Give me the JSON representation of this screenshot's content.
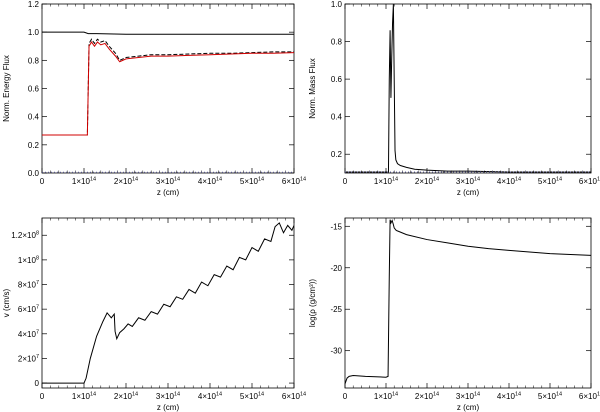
{
  "chart_data": [
    {
      "type": "line",
      "xlabel": "z (cm)",
      "ylabel": "Norm. Energy Flux",
      "xlim": [
        0,
        600000000000000.0
      ],
      "ylim": [
        0,
        1.2
      ],
      "xtick_values": [
        0,
        100000000000000.0,
        200000000000000.0,
        300000000000000.0,
        400000000000000.0,
        500000000000000.0,
        600000000000000.0
      ],
      "xtick_labels": [
        "0",
        "1×10^14",
        "2×10^14",
        "3×10^14",
        "4×10^14",
        "5×10^14",
        "6×10^14"
      ],
      "ytick_values": [
        0,
        0.2,
        0.4,
        0.6,
        0.8,
        1.0,
        1.2
      ],
      "ytick_labels": [
        "0.0",
        "0.2",
        "0.4",
        "0.6",
        "0.8",
        "1.0",
        "1.2"
      ],
      "series": [
        {
          "color": "#000000",
          "dash": "solid",
          "x": [
            0,
            100000000000000.0,
            110000000000000.0,
            130000000000000.0,
            200000000000000.0,
            300000000000000.0,
            400000000000000.0,
            500000000000000.0,
            600000000000000.0
          ],
          "y": [
            1.0,
            1.0,
            0.99,
            0.99,
            0.985,
            0.985,
            0.985,
            0.985,
            0.985
          ]
        },
        {
          "color": "#000000",
          "dash": "dashed",
          "x": [
            0,
            108000000000000.0,
            112000000000000.0,
            118000000000000.0,
            125000000000000.0,
            132000000000000.0,
            140000000000000.0,
            150000000000000.0,
            160000000000000.0,
            175000000000000.0,
            185000000000000.0,
            200000000000000.0,
            230000000000000.0,
            260000000000000.0,
            300000000000000.0,
            350000000000000.0,
            400000000000000.0,
            450000000000000.0,
            500000000000000.0,
            550000000000000.0,
            600000000000000.0
          ],
          "y": [
            0.27,
            0.27,
            0.92,
            0.95,
            0.92,
            0.95,
            0.93,
            0.94,
            0.9,
            0.85,
            0.8,
            0.82,
            0.83,
            0.84,
            0.84,
            0.845,
            0.85,
            0.85,
            0.855,
            0.86,
            0.86
          ]
        },
        {
          "color": "#d00000",
          "dash": "solid",
          "x": [
            0,
            108000000000000.0,
            112000000000000.0,
            118000000000000.0,
            125000000000000.0,
            132000000000000.0,
            140000000000000.0,
            150000000000000.0,
            160000000000000.0,
            175000000000000.0,
            185000000000000.0,
            200000000000000.0,
            230000000000000.0,
            260000000000000.0,
            300000000000000.0,
            350000000000000.0,
            400000000000000.0,
            450000000000000.0,
            500000000000000.0,
            550000000000000.0,
            600000000000000.0
          ],
          "y": [
            0.27,
            0.27,
            0.9,
            0.93,
            0.9,
            0.93,
            0.91,
            0.92,
            0.88,
            0.83,
            0.79,
            0.81,
            0.82,
            0.83,
            0.83,
            0.835,
            0.84,
            0.845,
            0.85,
            0.85,
            0.855
          ]
        },
        {
          "color": "#6060a0",
          "dash": "dotted",
          "x": [
            0,
            600000000000000.0
          ],
          "y": [
            0.005,
            0.005
          ]
        }
      ]
    },
    {
      "type": "line",
      "xlabel": "z (cm)",
      "ylabel": "Norm. Mass Flux",
      "xlim": [
        0,
        600000000000000.0
      ],
      "ylim": [
        0.1,
        1.0
      ],
      "xtick_values": [
        0,
        100000000000000.0,
        200000000000000.0,
        300000000000000.0,
        400000000000000.0,
        500000000000000.0,
        600000000000000.0
      ],
      "xtick_labels": [
        "0",
        "1×10^14",
        "2×10^14",
        "3×10^14",
        "4×10^14",
        "5×10^14",
        "6×10^14"
      ],
      "ytick_values": [
        0.2,
        0.4,
        0.6,
        0.8,
        1.0
      ],
      "ytick_labels": [
        "0.2",
        "0.4",
        "0.6",
        "0.8",
        "1.0"
      ],
      "series": [
        {
          "color": "#000000",
          "dash": "solid",
          "x": [
            0,
            106000000000000.0,
            108000000000000.0,
            110000000000000.0,
            112000000000000.0,
            114000000000000.0,
            116000000000000.0,
            118000000000000.0,
            120000000000000.0,
            122000000000000.0,
            124000000000000.0,
            128000000000000.0,
            135000000000000.0,
            150000000000000.0,
            170000000000000.0,
            200000000000000.0,
            250000000000000.0,
            300000000000000.0,
            400000000000000.0,
            500000000000000.0,
            600000000000000.0
          ],
          "y": [
            0.105,
            0.105,
            0.6,
            0.86,
            0.5,
            0.72,
            0.9,
            1.0,
            0.6,
            0.22,
            0.17,
            0.15,
            0.14,
            0.13,
            0.12,
            0.115,
            0.11,
            0.11,
            0.105,
            0.105,
            0.105
          ]
        },
        {
          "color": "#6060a0",
          "dash": "dotted",
          "x": [
            0,
            600000000000000.0
          ],
          "y": [
            0.105,
            0.105
          ]
        }
      ]
    },
    {
      "type": "line",
      "xlabel": "z (cm)",
      "ylabel": "v (cm/s)",
      "xlim": [
        0,
        600000000000000.0
      ],
      "ylim": [
        -4000000.0,
        134000000.0
      ],
      "xtick_values": [
        0,
        100000000000000.0,
        200000000000000.0,
        300000000000000.0,
        400000000000000.0,
        500000000000000.0,
        600000000000000.0
      ],
      "xtick_labels": [
        "0",
        "1×10^14",
        "2×10^14",
        "3×10^14",
        "4×10^14",
        "5×10^14",
        "6×10^14"
      ],
      "ytick_values": [
        0,
        20000000.0,
        40000000.0,
        60000000.0,
        80000000.0,
        100000000.0,
        120000000.0
      ],
      "ytick_labels": [
        "0",
        "2×10^7",
        "4×10^7",
        "6×10^7",
        "8×10^7",
        "1×10^8",
        "1.2×10^8"
      ],
      "series": [
        {
          "color": "#000000",
          "dash": "solid",
          "x": [
            0,
            100000000000000.0,
            105000000000000.0,
            115000000000000.0,
            130000000000000.0,
            145000000000000.0,
            155000000000000.0,
            165000000000000.0,
            172000000000000.0,
            174000000000000.0,
            178000000000000.0,
            185000000000000.0,
            195000000000000.0,
            205000000000000.0,
            215000000000000.0,
            230000000000000.0,
            245000000000000.0,
            260000000000000.0,
            275000000000000.0,
            290000000000000.0,
            305000000000000.0,
            320000000000000.0,
            335000000000000.0,
            350000000000000.0,
            365000000000000.0,
            380000000000000.0,
            395000000000000.0,
            410000000000000.0,
            425000000000000.0,
            440000000000000.0,
            455000000000000.0,
            470000000000000.0,
            485000000000000.0,
            500000000000000.0,
            515000000000000.0,
            530000000000000.0,
            545000000000000.0,
            555000000000000.0,
            565000000000000.0,
            575000000000000.0,
            585000000000000.0,
            595000000000000.0,
            600000000000000.0
          ],
          "y": [
            0,
            0,
            4000000.0,
            20000000.0,
            38000000.0,
            50000000.0,
            57000000.0,
            53000000.0,
            56000000.0,
            42000000.0,
            36000000.0,
            41000000.0,
            44000000.0,
            48000000.0,
            46000000.0,
            53000000.0,
            51000000.0,
            58000000.0,
            56000000.0,
            64000000.0,
            62000000.0,
            70000000.0,
            68000000.0,
            76000000.0,
            73000000.0,
            82000000.0,
            79000000.0,
            88000000.0,
            86000000.0,
            95000000.0,
            92000000.0,
            102000000.0,
            100000000.0,
            110000000.0,
            107000000.0,
            117000000.0,
            115000000.0,
            127000000.0,
            130000000.0,
            122000000.0,
            128000000.0,
            124000000.0,
            128000000.0
          ]
        }
      ]
    },
    {
      "type": "line",
      "xlabel": "z (cm)",
      "ylabel": "log(ρ (g/cm³))",
      "xlim": [
        0,
        600000000000000.0
      ],
      "ylim": [
        -34.5,
        -14
      ],
      "xtick_values": [
        0,
        100000000000000.0,
        200000000000000.0,
        300000000000000.0,
        400000000000000.0,
        500000000000000.0,
        600000000000000.0
      ],
      "xtick_labels": [
        "0",
        "1×10^14",
        "2×10^14",
        "3×10^14",
        "4×10^14",
        "5×10^14",
        "6×10^14"
      ],
      "ytick_values": [
        -30,
        -25,
        -20,
        -15
      ],
      "ytick_labels": [
        "-30",
        "-25",
        "-20",
        "-15"
      ],
      "series": [
        {
          "color": "#000000",
          "dash": "solid",
          "x": [
            0,
            5000000000000.0,
            10000000000000.0,
            20000000000000.0,
            50000000000000.0,
            100000000000000.0,
            105000000000000.0,
            108000000000000.0,
            110000000000000.0,
            112000000000000.0,
            115000000000000.0,
            118000000000000.0,
            120000000000000.0,
            125000000000000.0,
            130000000000000.0,
            150000000000000.0,
            200000000000000.0,
            250000000000000.0,
            300000000000000.0,
            350000000000000.0,
            400000000000000.0,
            450000000000000.0,
            500000000000000.0,
            550000000000000.0,
            600000000000000.0
          ],
          "y": [
            -34,
            -33.3,
            -33.1,
            -33.0,
            -33.1,
            -33.2,
            -33.1,
            -21,
            -14.2,
            -14.6,
            -14.3,
            -14.8,
            -15.2,
            -15.5,
            -15.6,
            -16.0,
            -16.6,
            -17.0,
            -17.4,
            -17.7,
            -17.9,
            -18.1,
            -18.3,
            -18.4,
            -18.5
          ]
        }
      ]
    }
  ]
}
